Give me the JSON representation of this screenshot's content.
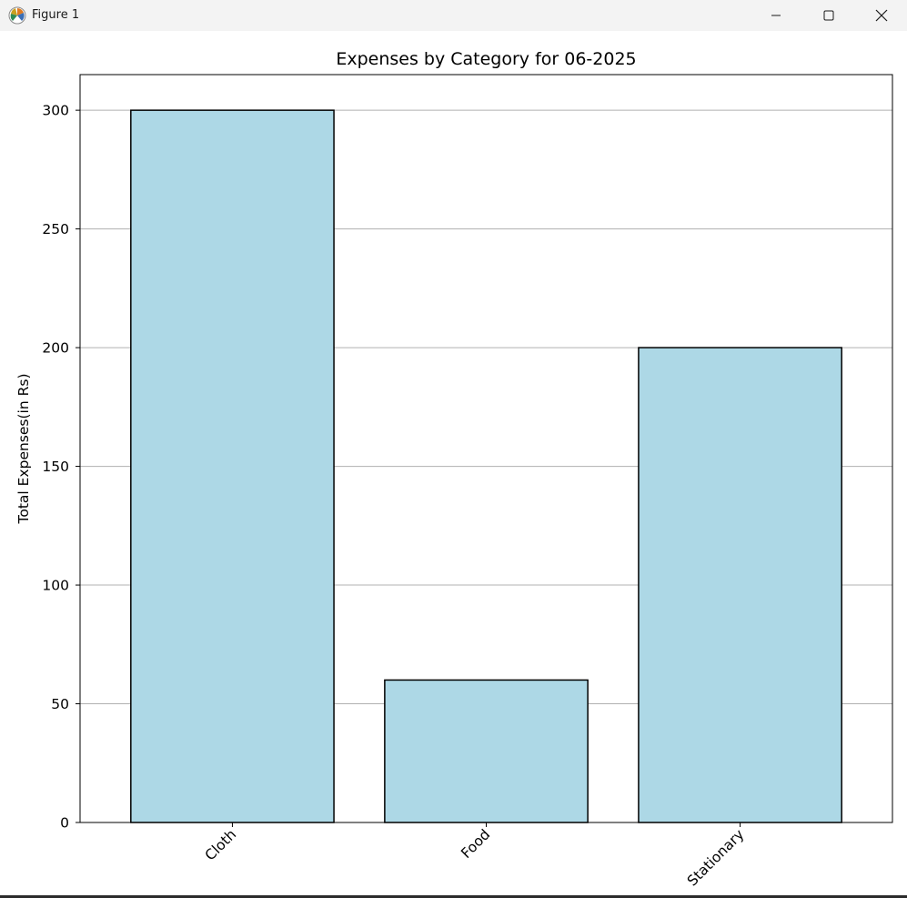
{
  "window": {
    "title": "Figure 1",
    "icon": "matplotlib-logo-icon",
    "controls": [
      "minimize-icon",
      "maximize-icon",
      "close-icon"
    ]
  },
  "chart_data": {
    "type": "bar",
    "title": "Expenses by Category for 06-2025",
    "xlabel": "",
    "ylabel": "Total Expenses(in Rs)",
    "categories": [
      "Cloth",
      "Food",
      "Stationary"
    ],
    "values": [
      300,
      60,
      200
    ],
    "ylim": [
      0,
      315
    ],
    "yticks": [
      0,
      50,
      100,
      150,
      200,
      250,
      300
    ],
    "xtick_rotation": 45,
    "grid": "y",
    "legend": "none",
    "bar_color": "#add8e6",
    "edge_color": "#000000"
  }
}
